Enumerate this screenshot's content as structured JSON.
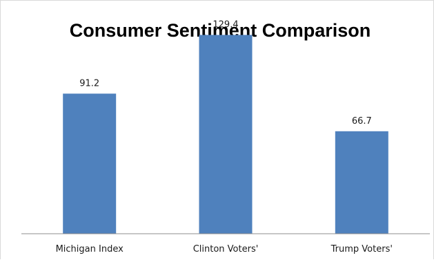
{
  "chart_data": {
    "type": "bar",
    "title": "Consumer Sentiment Comparison",
    "categories": [
      "Michigan Index",
      "Clinton Voters'",
      "Trump Voters'"
    ],
    "values": [
      91.2,
      129.4,
      66.7
    ],
    "data_labels": [
      "91.2",
      "129.4",
      "66.7"
    ],
    "xlabel": "",
    "ylabel": "",
    "ylim": [
      0,
      140
    ],
    "grid": false,
    "legend": "none",
    "bar_color": "#4f81bd"
  }
}
